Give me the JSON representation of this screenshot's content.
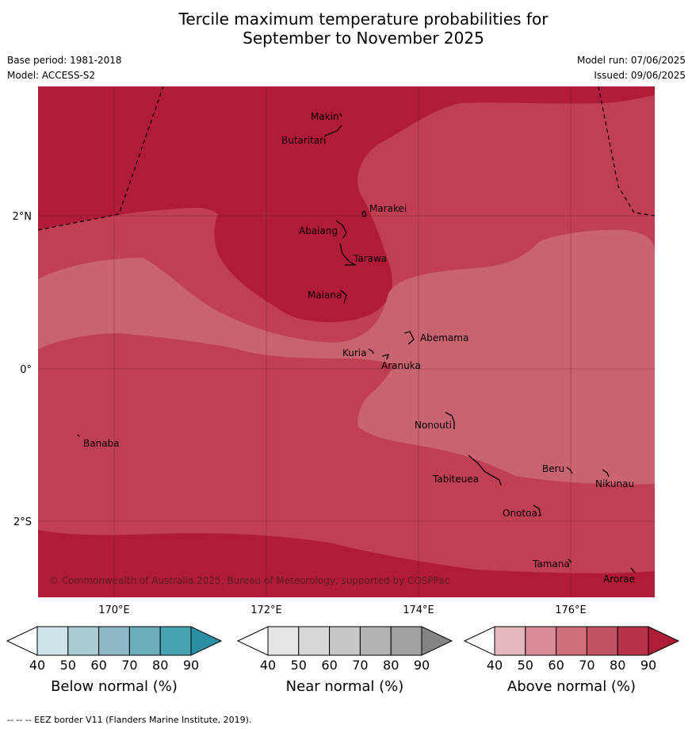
{
  "title": {
    "line1": "Tercile maximum temperature probabilities for",
    "line2": "September to November 2025"
  },
  "meta": {
    "base_period": "Base period: 1981-2018",
    "model": "Model: ACCESS-S2",
    "model_run": "Model run: 07/06/2025",
    "issued": "Issued: 09/06/2025"
  },
  "map": {
    "lon_ticks": [
      "170°E",
      "172°E",
      "174°E",
      "176°E"
    ],
    "lat_ticks": [
      "2°N",
      "0°",
      "2°S"
    ],
    "places": {
      "makin": "Makin",
      "butaritari": "Butaritari",
      "marakei": "Marakei",
      "abaiang": "Abaiang",
      "tarawa": "Tarawa",
      "maiana": "Maiana",
      "abemama": "Abemama",
      "kuria": "Kuria",
      "aranuka": "Aranuka",
      "banaba": "Banaba",
      "nonouti": "Nonouti",
      "beru": "Beru",
      "nikunau": "Nikunau",
      "tabiteuea": "Tabiteuea",
      "onotoa": "Onotoa",
      "tamana": "Tamana",
      "arorae": "Arorae"
    },
    "credit": "© Commonwealth of Australia 2025, Bureau of Meteorology, supported by COSPPac",
    "colors": {
      "above_90": "#b01c38",
      "above_80": "#c03f52",
      "above_70": "#c8636f"
    }
  },
  "colorbars": [
    {
      "title": "Below normal (%)",
      "ticks": [
        "40",
        "50",
        "60",
        "70",
        "80",
        "90"
      ],
      "colors": [
        "#ffffff",
        "#cce3ea",
        "#a8cbd4",
        "#8ab8c5",
        "#6badbc",
        "#47a3b4",
        "#2a8fa3"
      ]
    },
    {
      "title": "Near normal (%)",
      "ticks": [
        "40",
        "50",
        "60",
        "70",
        "80",
        "90"
      ],
      "colors": [
        "#ffffff",
        "#e6e6e6",
        "#d7d7d7",
        "#c7c7c7",
        "#b3b3b3",
        "#a0a0a0",
        "#848484"
      ]
    },
    {
      "title": "Above normal (%)",
      "ticks": [
        "40",
        "50",
        "60",
        "70",
        "80",
        "90"
      ],
      "colors": [
        "#ffffff",
        "#e4b8be",
        "#d98c98",
        "#cd6e79",
        "#c35362",
        "#b73247",
        "#b01c38"
      ]
    }
  ],
  "footer": "--  --  -- EEZ border V11 (Flanders Marine Institute, 2019)."
}
